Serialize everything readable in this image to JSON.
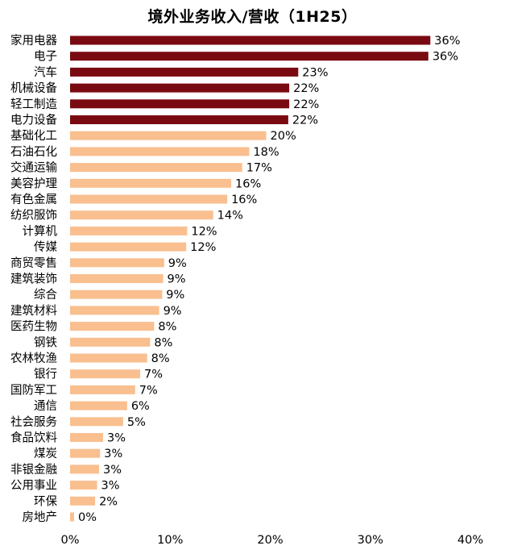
{
  "chart_data": {
    "type": "bar",
    "orientation": "horizontal",
    "title": "境外业务收入/营收（1H25）",
    "xlabel": "",
    "ylabel": "",
    "xlim": [
      0,
      40
    ],
    "x_ticks": [
      0,
      10,
      20,
      30,
      40
    ],
    "x_tick_labels": [
      "0%",
      "10%",
      "20%",
      "30%",
      "40%"
    ],
    "grid": false,
    "legend": "none",
    "colors": {
      "highlight": "#7a0a12",
      "normal": "#f9bf8f"
    },
    "categories": [
      "家用电器",
      "电子",
      "汽车",
      "机械设备",
      "轻工制造",
      "电力设备",
      "基础化工",
      "石油石化",
      "交通运输",
      "美容护理",
      "有色金属",
      "纺织服饰",
      "计算机",
      "传媒",
      "商贸零售",
      "建筑装饰",
      "综合",
      "建筑材料",
      "医药生物",
      "钢铁",
      "农林牧渔",
      "银行",
      "国防军工",
      "通信",
      "社会服务",
      "食品饮料",
      "煤炭",
      "非银金融",
      "公用事业",
      "环保",
      "房地产"
    ],
    "values": [
      36.0,
      35.8,
      22.8,
      21.9,
      21.9,
      21.8,
      19.6,
      17.9,
      17.2,
      16.1,
      15.7,
      14.3,
      11.7,
      11.6,
      9.4,
      9.3,
      9.2,
      8.9,
      8.4,
      8.0,
      7.7,
      7.0,
      6.5,
      5.7,
      5.3,
      3.3,
      3.0,
      2.9,
      2.7,
      2.5,
      0.4
    ],
    "value_labels": [
      "36%",
      "36%",
      "23%",
      "22%",
      "22%",
      "22%",
      "20%",
      "18%",
      "17%",
      "16%",
      "16%",
      "14%",
      "12%",
      "12%",
      "9%",
      "9%",
      "9%",
      "9%",
      "8%",
      "8%",
      "8%",
      "7%",
      "7%",
      "6%",
      "5%",
      "3%",
      "3%",
      "3%",
      "3%",
      "2%",
      "0%"
    ],
    "highlight": [
      true,
      true,
      true,
      true,
      true,
      true,
      false,
      false,
      false,
      false,
      false,
      false,
      false,
      false,
      false,
      false,
      false,
      false,
      false,
      false,
      false,
      false,
      false,
      false,
      false,
      false,
      false,
      false,
      false,
      false,
      false
    ]
  }
}
